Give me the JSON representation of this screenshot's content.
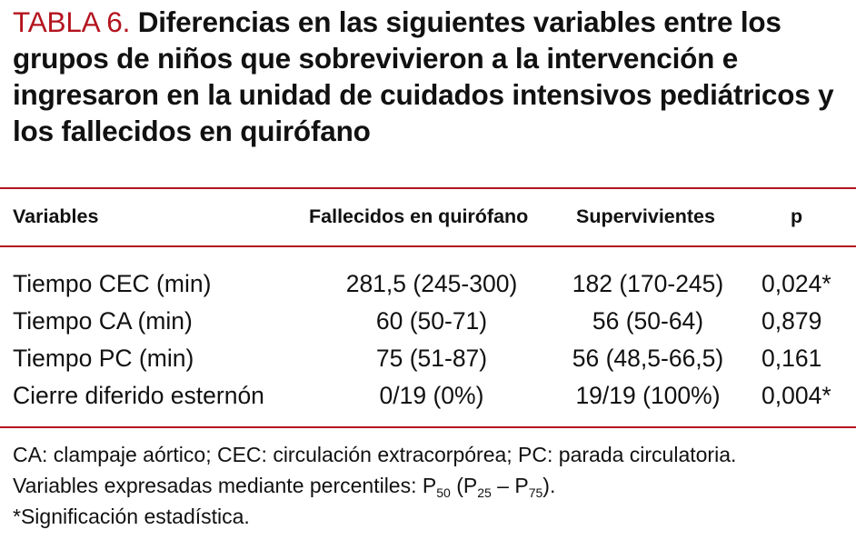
{
  "title": {
    "label": "TABLA 6.",
    "text": "Diferencias en las siguientes variables entre los grupos de niños que sobrevivieron a la intervención e ingresaron en la unidad de cuidados intensivos pediátricos y los fallecidos en quirófano"
  },
  "colors": {
    "accent": "#b4141e"
  },
  "table": {
    "headers": [
      "Variables",
      "Fallecidos en quirófano",
      "Supervivientes",
      "p"
    ],
    "rows": [
      [
        "Tiempo CEC (min)",
        "281,5 (245-300)",
        "182 (170-245)",
        "0,024*"
      ],
      [
        "Tiempo CA (min)",
        "60 (50-71)",
        "56 (50-64)",
        "0,879"
      ],
      [
        "Tiempo PC (min)",
        "75 (51-87)",
        "56 (48,5-66,5)",
        "0,161"
      ],
      [
        "Cierre diferido esternón",
        "0/19 (0%)",
        "19/19 (100%)",
        "0,004*"
      ]
    ]
  },
  "notes": {
    "abbreviations": "CA: clampaje aórtico; CEC: circulación extracorpórea; PC: parada circulatoria.",
    "percentiles_prefix": "Variables expresadas mediante percentiles: P",
    "p50": "50",
    "p_open": " (P",
    "p25": "25",
    "p_dash": " – P",
    "p75": "75",
    "p_close": ").",
    "significance": "*Significación estadística."
  }
}
